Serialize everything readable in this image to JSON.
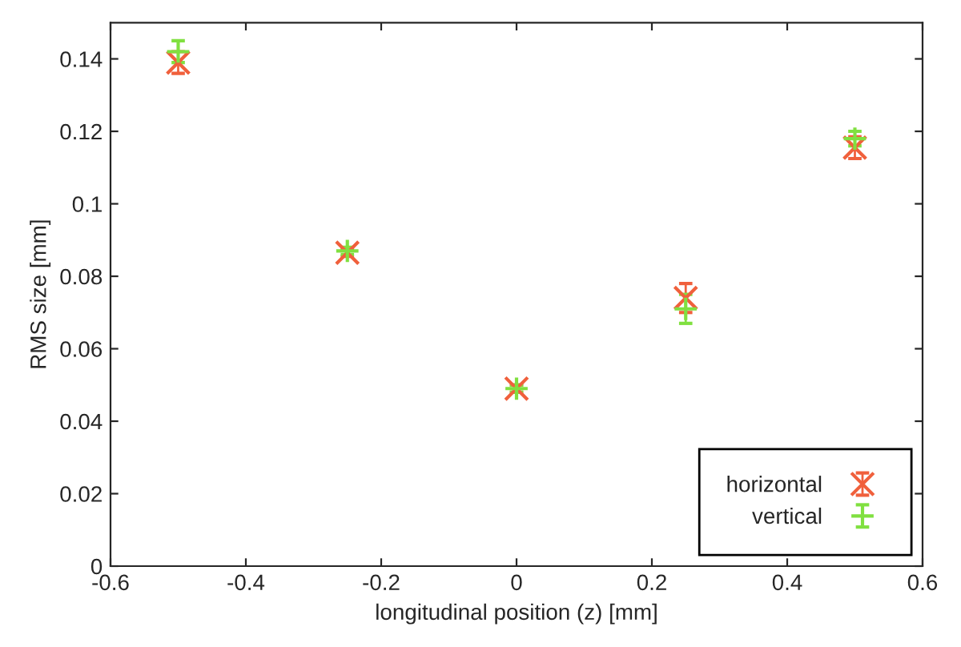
{
  "chart_data": {
    "type": "scatter",
    "xlabel": "longitudinal position (z) [mm]",
    "ylabel": "RMS size [mm]",
    "x": [
      -0.5,
      -0.25,
      0,
      0.25,
      0.5
    ],
    "series": [
      {
        "name": "horizontal",
        "color": "#f0603c",
        "marker": "cross",
        "values": [
          0.139,
          0.0865,
          0.049,
          0.074,
          0.1155
        ],
        "errors": [
          0.003,
          0.001,
          0.001,
          0.004,
          0.003
        ]
      },
      {
        "name": "vertical",
        "color": "#80e040",
        "marker": "plus",
        "values": [
          0.142,
          0.087,
          0.049,
          0.071,
          0.118
        ],
        "errors": [
          0.003,
          0.001,
          0.001,
          0.004,
          0.002
        ]
      }
    ],
    "xlim": [
      -0.6,
      0.6
    ],
    "xticks": [
      -0.6,
      -0.4,
      -0.2,
      0,
      0.2,
      0.4,
      0.6
    ],
    "ylim": [
      0,
      0.15
    ],
    "yticks": [
      0,
      0.02,
      0.04,
      0.06,
      0.08,
      0.1,
      0.12,
      0.14
    ],
    "grid": false,
    "legend": "bottom right"
  }
}
